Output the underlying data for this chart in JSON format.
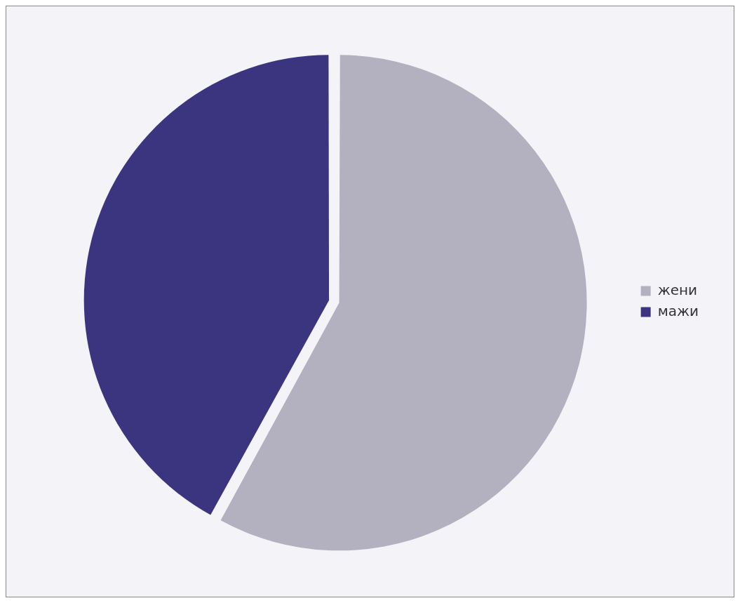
{
  "chart_data": {
    "type": "pie",
    "categories": [
      "жени",
      "мажи"
    ],
    "values": [
      58,
      42
    ],
    "colors": [
      "#b3b0bf",
      "#3b3580"
    ],
    "legend": "right"
  }
}
